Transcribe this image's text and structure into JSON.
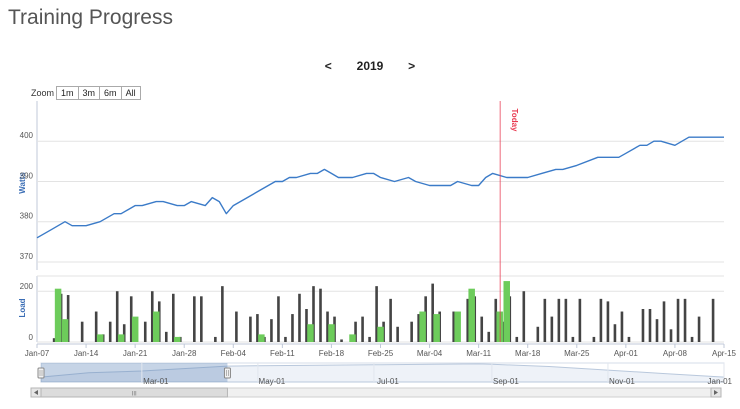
{
  "header": {
    "title": "Training Progress"
  },
  "year_nav": {
    "prev": "<",
    "year": "2019",
    "next": ">"
  },
  "zoom": {
    "label": "Zoom",
    "buttons": [
      "1m",
      "3m",
      "6m",
      "All"
    ]
  },
  "chart_data": [
    {
      "type": "line",
      "ylabel": "Watts",
      "ylim": [
        368,
        410
      ],
      "yticks": [
        370,
        380,
        390,
        400
      ],
      "color": "#3b7bc8",
      "x_start": "2019-01-07",
      "x_end": "2019-04-15",
      "x": [
        "2019-01-07",
        "2019-01-09",
        "2019-01-11",
        "2019-01-12",
        "2019-01-14",
        "2019-01-16",
        "2019-01-18",
        "2019-01-19",
        "2019-01-21",
        "2019-01-22",
        "2019-01-24",
        "2019-01-25",
        "2019-01-27",
        "2019-01-28",
        "2019-01-29",
        "2019-01-31",
        "2019-02-01",
        "2019-02-02",
        "2019-02-03",
        "2019-02-04",
        "2019-02-06",
        "2019-02-08",
        "2019-02-10",
        "2019-02-11",
        "2019-02-12",
        "2019-02-13",
        "2019-02-15",
        "2019-02-16",
        "2019-02-17",
        "2019-02-18",
        "2019-02-19",
        "2019-02-21",
        "2019-02-23",
        "2019-02-24",
        "2019-02-25",
        "2019-02-27",
        "2019-03-01",
        "2019-03-02",
        "2019-03-04",
        "2019-03-06",
        "2019-03-07",
        "2019-03-08",
        "2019-03-10",
        "2019-03-11",
        "2019-03-12",
        "2019-03-13",
        "2019-03-15",
        "2019-03-16",
        "2019-03-18",
        "2019-03-20",
        "2019-03-22",
        "2019-03-23",
        "2019-03-25",
        "2019-03-28",
        "2019-03-31",
        "2019-04-01",
        "2019-04-03",
        "2019-04-04",
        "2019-04-05",
        "2019-04-06",
        "2019-04-08",
        "2019-04-10",
        "2019-04-12",
        "2019-04-15"
      ],
      "values": [
        376,
        378,
        380,
        379,
        379,
        380,
        382,
        382,
        384,
        384,
        385,
        385,
        384,
        384,
        385,
        384,
        386,
        385,
        382,
        384,
        386,
        388,
        390,
        390,
        391,
        391,
        392,
        392,
        393,
        392,
        391,
        391,
        392,
        392,
        391,
        390,
        391,
        390,
        389,
        389,
        389,
        390,
        389,
        389,
        391,
        392,
        391,
        391,
        391,
        392,
        393,
        393,
        394,
        396,
        396,
        397,
        399,
        399,
        400,
        400,
        399,
        401,
        401,
        401
      ],
      "annotations": [
        {
          "x": "2019-03-14",
          "label": "Today",
          "color": "#e8384f"
        }
      ]
    },
    {
      "type": "bar",
      "ylabel": "Load",
      "ylim": [
        0,
        260
      ],
      "yticks": [
        0,
        200
      ],
      "x_ticks": [
        "Jan-07",
        "Jan-14",
        "Jan-21",
        "Jan-28",
        "Feb-04",
        "Feb-11",
        "Feb-18",
        "Feb-25",
        "Mar-04",
        "Mar-11",
        "Mar-18",
        "Mar-25",
        "Apr-01",
        "Apr-08",
        "Apr-15"
      ],
      "series": [
        {
          "color": "#444444",
          "points": [
            [
              "2019-01-09",
              15
            ],
            [
              "2019-01-10",
              190
            ],
            [
              "2019-01-11",
              185
            ],
            [
              "2019-01-13",
              80
            ],
            [
              "2019-01-15",
              120
            ],
            [
              "2019-01-16",
              30
            ],
            [
              "2019-01-17",
              80
            ],
            [
              "2019-01-18",
              200
            ],
            [
              "2019-01-19",
              70
            ],
            [
              "2019-01-20",
              180
            ],
            [
              "2019-01-22",
              80
            ],
            [
              "2019-01-23",
              200
            ],
            [
              "2019-01-24",
              160
            ],
            [
              "2019-01-25",
              40
            ],
            [
              "2019-01-26",
              190
            ],
            [
              "2019-01-27",
              20
            ],
            [
              "2019-01-29",
              180
            ],
            [
              "2019-01-30",
              180
            ],
            [
              "2019-02-01",
              20
            ],
            [
              "2019-02-02",
              220
            ],
            [
              "2019-02-04",
              120
            ],
            [
              "2019-02-06",
              100
            ],
            [
              "2019-02-07",
              110
            ],
            [
              "2019-02-08",
              20
            ],
            [
              "2019-02-09",
              90
            ],
            [
              "2019-02-10",
              180
            ],
            [
              "2019-02-11",
              20
            ],
            [
              "2019-02-12",
              110
            ],
            [
              "2019-02-13",
              190
            ],
            [
              "2019-02-14",
              130
            ],
            [
              "2019-02-15",
              220
            ],
            [
              "2019-02-16",
              210
            ],
            [
              "2019-02-17",
              120
            ],
            [
              "2019-02-18",
              100
            ],
            [
              "2019-02-19",
              10
            ],
            [
              "2019-02-21",
              80
            ],
            [
              "2019-02-22",
              100
            ],
            [
              "2019-02-23",
              20
            ],
            [
              "2019-02-24",
              220
            ],
            [
              "2019-02-25",
              80
            ],
            [
              "2019-02-26",
              170
            ],
            [
              "2019-02-27",
              60
            ],
            [
              "2019-03-01",
              80
            ],
            [
              "2019-03-02",
              110
            ],
            [
              "2019-03-03",
              180
            ],
            [
              "2019-03-04",
              230
            ],
            [
              "2019-03-05",
              120
            ],
            [
              "2019-03-07",
              120
            ],
            [
              "2019-03-09",
              170
            ],
            [
              "2019-03-10",
              180
            ],
            [
              "2019-03-11",
              100
            ],
            [
              "2019-03-12",
              40
            ],
            [
              "2019-03-13",
              170
            ],
            [
              "2019-03-14",
              80
            ],
            [
              "2019-03-15",
              180
            ],
            [
              "2019-03-16",
              20
            ],
            [
              "2019-03-17",
              200
            ],
            [
              "2019-03-19",
              60
            ],
            [
              "2019-03-20",
              170
            ],
            [
              "2019-03-21",
              100
            ],
            [
              "2019-03-22",
              170
            ],
            [
              "2019-03-23",
              170
            ],
            [
              "2019-03-24",
              20
            ],
            [
              "2019-03-25",
              170
            ],
            [
              "2019-03-27",
              20
            ],
            [
              "2019-03-28",
              170
            ],
            [
              "2019-03-29",
              160
            ],
            [
              "2019-03-30",
              70
            ],
            [
              "2019-03-31",
              120
            ],
            [
              "2019-04-01",
              20
            ],
            [
              "2019-04-03",
              130
            ],
            [
              "2019-04-04",
              130
            ],
            [
              "2019-04-05",
              90
            ],
            [
              "2019-04-06",
              160
            ],
            [
              "2019-04-07",
              50
            ],
            [
              "2019-04-08",
              170
            ],
            [
              "2019-04-09",
              170
            ],
            [
              "2019-04-10",
              20
            ],
            [
              "2019-04-11",
              100
            ],
            [
              "2019-04-13",
              170
            ]
          ]
        },
        {
          "color": "#6dcc5b",
          "points": [
            [
              "2019-01-10",
              210
            ],
            [
              "2019-01-11",
              90
            ],
            [
              "2019-01-16",
              30
            ],
            [
              "2019-01-19",
              30
            ],
            [
              "2019-01-21",
              100
            ],
            [
              "2019-01-24",
              120
            ],
            [
              "2019-01-27",
              20
            ],
            [
              "2019-02-08",
              30
            ],
            [
              "2019-02-15",
              70
            ],
            [
              "2019-02-18",
              70
            ],
            [
              "2019-02-21",
              30
            ],
            [
              "2019-02-25",
              60
            ],
            [
              "2019-03-03",
              120
            ],
            [
              "2019-03-05",
              110
            ],
            [
              "2019-03-08",
              120
            ],
            [
              "2019-03-10",
              210
            ],
            [
              "2019-03-14",
              120
            ],
            [
              "2019-03-15",
              240
            ]
          ]
        }
      ],
      "annotations": [
        {
          "x": "2019-03-14",
          "color": "#e8384f"
        }
      ]
    },
    {
      "type": "area",
      "x_ticks": [
        "Mar-01",
        "May-01",
        "Jul-01",
        "Sep-01",
        "Nov-01",
        "Jan-01"
      ],
      "x_ticks_at": [
        "2019-03-01",
        "2019-05-01",
        "2019-07-01",
        "2019-09-01",
        "2019-11-01",
        "2020-01-01"
      ],
      "x_range": [
        "2019-01-07",
        "2020-01-01"
      ],
      "selected_range": [
        "2019-01-07",
        "2019-04-15"
      ],
      "x": [
        "2019-01-07",
        "2019-02-01",
        "2019-03-01",
        "2019-04-15",
        "2019-05-01",
        "2019-06-01",
        "2019-07-01",
        "2019-08-01",
        "2019-08-25",
        "2019-09-01",
        "2019-10-01",
        "2019-11-01",
        "2019-12-01",
        "2020-01-01"
      ],
      "values": [
        376,
        386,
        390,
        401,
        402,
        403,
        404,
        405,
        406,
        405,
        400,
        392,
        384,
        376
      ],
      "ylim": [
        365,
        408
      ],
      "scrollbar_grip": "III"
    }
  ]
}
